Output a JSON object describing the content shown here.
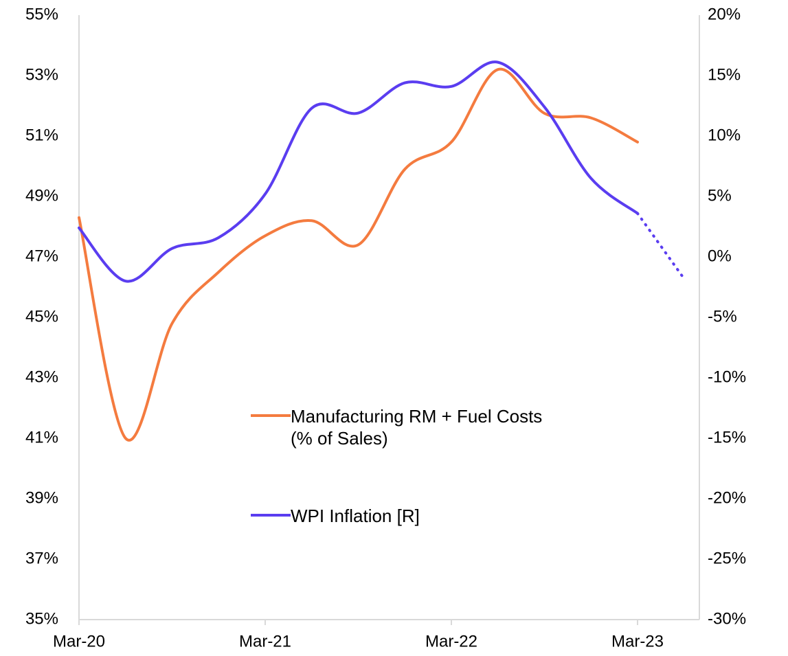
{
  "chart_data": {
    "type": "line",
    "categories": [
      "Mar-20",
      null,
      null,
      null,
      "Mar-21",
      null,
      null,
      null,
      "Mar-22",
      null,
      null,
      null,
      "Mar-23",
      null
    ],
    "series": [
      {
        "name": "Manufacturing RM + Fuel Costs\n(% of Sales)",
        "color": "#f47b3f",
        "values": [
          48.3,
          41.0,
          44.8,
          46.5,
          47.7,
          48.2,
          47.4,
          49.9,
          50.8,
          53.2,
          51.75,
          51.6,
          50.8,
          null
        ]
      },
      {
        "name": "WPI Inflation [R]",
        "color": "#5a3df0",
        "axis": "y2",
        "dotted_from": 12,
        "values": [
          2.4,
          -2.0,
          0.7,
          1.6,
          5.2,
          12.3,
          11.9,
          14.4,
          14.1,
          16.1,
          12.4,
          6.5,
          3.6,
          -1.8
        ]
      }
    ],
    "ylim": [
      35,
      55
    ],
    "yticks": [
      {
        "value": 35,
        "label": "35%"
      },
      {
        "value": 37,
        "label": "37%"
      },
      {
        "value": 39,
        "label": "39%"
      },
      {
        "value": 41,
        "label": "41%"
      },
      {
        "value": 43,
        "label": "43%"
      },
      {
        "value": 45,
        "label": "45%"
      },
      {
        "value": 47,
        "label": "47%"
      },
      {
        "value": 49,
        "label": "49%"
      },
      {
        "value": 51,
        "label": "51%"
      },
      {
        "value": 53,
        "label": "53%"
      },
      {
        "value": 55,
        "label": "55%"
      }
    ],
    "y2lim": [
      -30,
      20
    ],
    "y2ticks": [
      {
        "value": -30,
        "label": "-30%"
      },
      {
        "value": -25,
        "label": "-25%"
      },
      {
        "value": -20,
        "label": "-20%"
      },
      {
        "value": -15,
        "label": "-15%"
      },
      {
        "value": -10,
        "label": "-10%"
      },
      {
        "value": -5,
        "label": "-5%"
      },
      {
        "value": 0,
        "label": "0%"
      },
      {
        "value": 5,
        "label": "5%"
      },
      {
        "value": 10,
        "label": "10%"
      },
      {
        "value": 15,
        "label": "15%"
      },
      {
        "value": 20,
        "label": "20%"
      }
    ],
    "grid": false
  }
}
